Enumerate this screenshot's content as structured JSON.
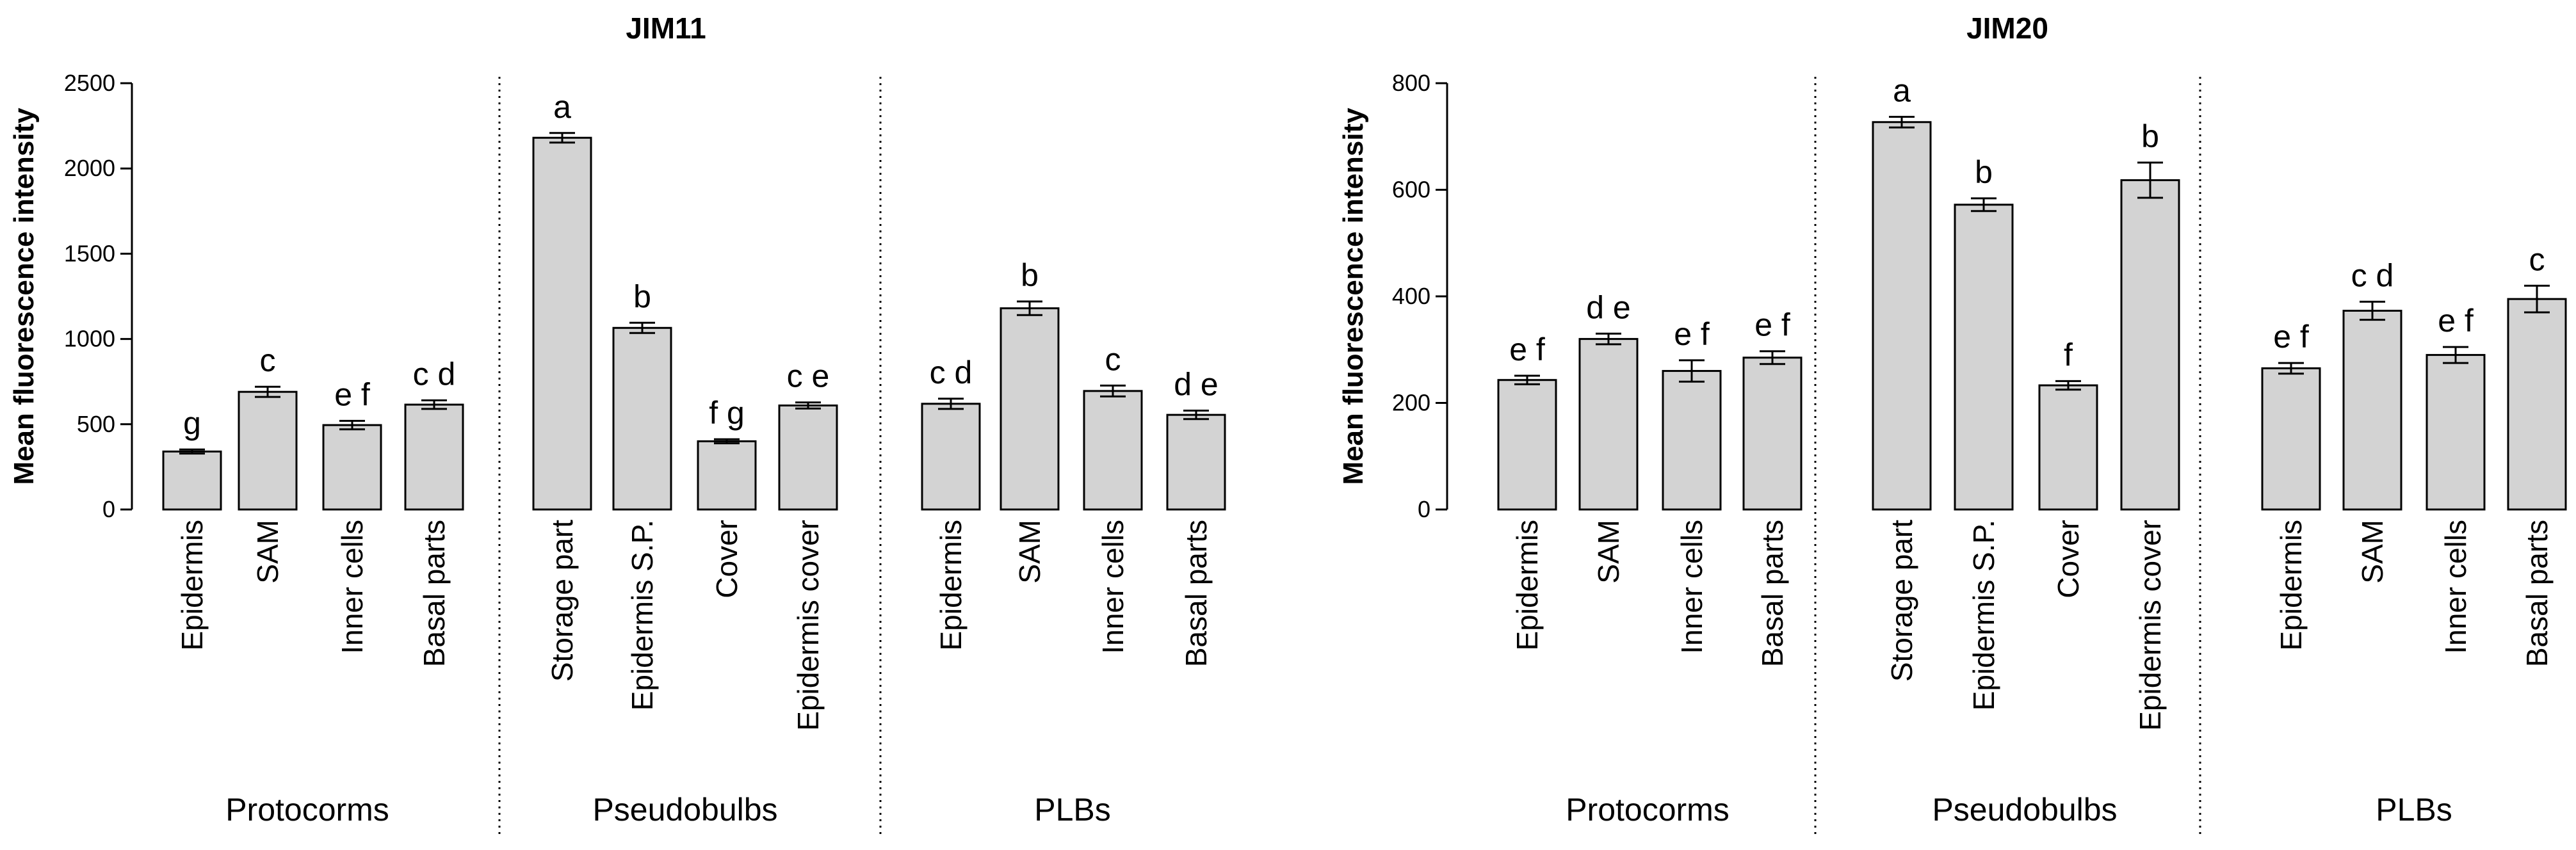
{
  "chart_data": [
    {
      "type": "bar",
      "title": "JIM11",
      "ylabel": "Mean fluorescence intensity",
      "ylim": [
        0,
        2500
      ],
      "yticks": [
        0,
        500,
        1000,
        1500,
        2000,
        2500
      ],
      "error_bars": true,
      "bar_color": "#d3d3d3",
      "groups": [
        {
          "name": "Protocorms",
          "bars": [
            {
              "category": "Epidermis",
              "value": 340,
              "error": 12,
              "letters": "g"
            },
            {
              "category": "SAM",
              "value": 690,
              "error": 30,
              "letters": "c"
            },
            {
              "category": "Inner cells",
              "value": 495,
              "error": 25,
              "letters": "e f"
            },
            {
              "category": "Basal parts",
              "value": 615,
              "error": 25,
              "letters": "c d"
            }
          ]
        },
        {
          "name": "Pseudobulbs",
          "bars": [
            {
              "category": "Storage part",
              "value": 2180,
              "error": 28,
              "letters": "a"
            },
            {
              "category": "Epidermis S.P.",
              "value": 1065,
              "error": 30,
              "letters": "b"
            },
            {
              "category": "Cover",
              "value": 400,
              "error": 12,
              "letters": "f g"
            },
            {
              "category": "Epidermis cover",
              "value": 610,
              "error": 18,
              "letters": "c e"
            }
          ]
        },
        {
          "name": "PLBs",
          "bars": [
            {
              "category": "Epidermis",
              "value": 620,
              "error": 30,
              "letters": "c d"
            },
            {
              "category": "SAM",
              "value": 1180,
              "error": 40,
              "letters": "b"
            },
            {
              "category": "Inner cells",
              "value": 695,
              "error": 32,
              "letters": "c"
            },
            {
              "category": "Basal parts",
              "value": 555,
              "error": 25,
              "letters": "d e"
            }
          ]
        }
      ]
    },
    {
      "type": "bar",
      "title": "JIM20",
      "ylabel": "Mean fluorescence intensity",
      "ylim": [
        0,
        800
      ],
      "yticks": [
        0,
        200,
        400,
        600,
        800
      ],
      "error_bars": true,
      "bar_color": "#d3d3d3",
      "groups": [
        {
          "name": "Protocorms",
          "bars": [
            {
              "category": "Epidermis",
              "value": 243,
              "error": 8,
              "letters": "e f"
            },
            {
              "category": "SAM",
              "value": 320,
              "error": 10,
              "letters": "d e"
            },
            {
              "category": "Inner cells",
              "value": 260,
              "error": 20,
              "letters": "e f"
            },
            {
              "category": "Basal parts",
              "value": 285,
              "error": 12,
              "letters": "e f"
            }
          ]
        },
        {
          "name": "Pseudobulbs",
          "bars": [
            {
              "category": "Storage part",
              "value": 727,
              "error": 10,
              "letters": "a"
            },
            {
              "category": "Epidermis S.P.",
              "value": 572,
              "error": 12,
              "letters": "b"
            },
            {
              "category": "Cover",
              "value": 233,
              "error": 8,
              "letters": "f"
            },
            {
              "category": "Epidermis cover",
              "value": 618,
              "error": 33,
              "letters": "b"
            }
          ]
        },
        {
          "name": "PLBs",
          "bars": [
            {
              "category": "Epidermis",
              "value": 265,
              "error": 10,
              "letters": "e f"
            },
            {
              "category": "SAM",
              "value": 373,
              "error": 17,
              "letters": "c d"
            },
            {
              "category": "Inner cells",
              "value": 290,
              "error": 15,
              "letters": "e f"
            },
            {
              "category": "Basal parts",
              "value": 395,
              "error": 25,
              "letters": "c"
            }
          ]
        }
      ]
    }
  ]
}
